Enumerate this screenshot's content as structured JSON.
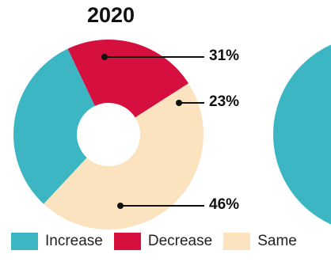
{
  "chart_data": {
    "type": "pie",
    "title": "2020",
    "categories": [
      "Increase",
      "Decrease",
      "Same"
    ],
    "values": [
      31,
      23,
      46
    ],
    "value_labels": [
      "31%",
      "23%",
      "46%"
    ],
    "colors": [
      "#3db6c4",
      "#d6103e",
      "#fbe3bf"
    ],
    "donut": true,
    "legend_position": "bottom",
    "legend": [
      "Increase",
      "Decrease",
      "Same"
    ]
  }
}
